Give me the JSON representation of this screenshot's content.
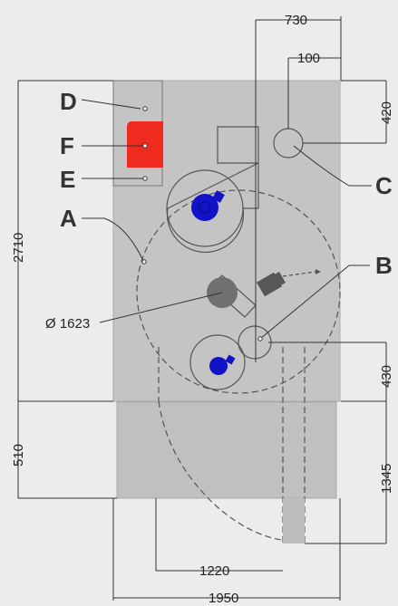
{
  "labels": {
    "A": "A",
    "B": "B",
    "C": "C",
    "D": "D",
    "E": "E",
    "F": "F"
  },
  "dimensions": {
    "top_offset": "730",
    "top_small": "100",
    "right_top": "420",
    "right_mid": "430",
    "right_bottom": "1345",
    "left_total": "2710",
    "left_bottom": "510",
    "diameter": "Ø 1623",
    "bottom_inner": "1220",
    "bottom_total": "1950"
  },
  "colors": {
    "body": "#c4c4c4",
    "base": "#c0c0c0",
    "panel_red": "#ee2b1e",
    "motor_blue": "#1212c8",
    "motor_gray": "#707070",
    "dark_gray": "#575757",
    "background": "#ececec"
  }
}
